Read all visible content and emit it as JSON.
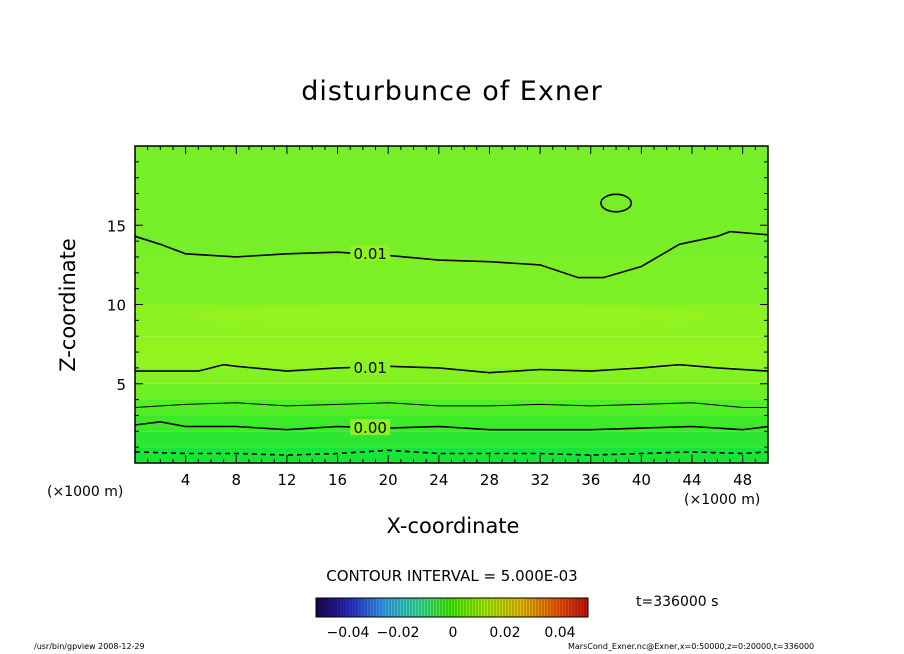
{
  "chart_data": {
    "type": "contour",
    "title": "disturbunce of Exner",
    "xlabel": "X-coordinate",
    "ylabel": "Z-coordinate",
    "x_unit": "(×1000 m)",
    "y_unit": "(×1000 m)",
    "xlim": [
      0,
      50
    ],
    "ylim": [
      0,
      20
    ],
    "x_ticks": [
      4,
      8,
      12,
      16,
      20,
      24,
      28,
      32,
      36,
      40,
      44,
      48
    ],
    "y_ticks": [
      5,
      10,
      15
    ],
    "contour_interval_text": "CONTOUR INTERVAL = 5.000E-03",
    "contour_labels": [
      {
        "text": "0.01",
        "x": 17,
        "z": 13.2
      },
      {
        "text": "0.01",
        "x": 17,
        "z": 6.0
      },
      {
        "text": "0.00",
        "x": 17,
        "z": 2.2
      }
    ],
    "contour_lines": [
      {
        "value": 0.01,
        "style": "solid",
        "points": [
          [
            0,
            14.3
          ],
          [
            2,
            13.8
          ],
          [
            4,
            13.2
          ],
          [
            8,
            13.0
          ],
          [
            12,
            13.2
          ],
          [
            16,
            13.3
          ],
          [
            20,
            13.1
          ],
          [
            24,
            12.8
          ],
          [
            28,
            12.7
          ],
          [
            32,
            12.5
          ],
          [
            35,
            11.7
          ],
          [
            37,
            11.7
          ],
          [
            40,
            12.4
          ],
          [
            43,
            13.8
          ],
          [
            46,
            14.3
          ],
          [
            47,
            14.6
          ],
          [
            50,
            14.4
          ]
        ]
      },
      {
        "value": 0.01,
        "style": "solid",
        "points": [
          [
            0,
            5.8
          ],
          [
            5,
            5.8
          ],
          [
            7,
            6.2
          ],
          [
            8,
            6.1
          ],
          [
            12,
            5.8
          ],
          [
            16,
            6.0
          ],
          [
            20,
            6.1
          ],
          [
            24,
            6.0
          ],
          [
            28,
            5.7
          ],
          [
            32,
            5.9
          ],
          [
            36,
            5.8
          ],
          [
            40,
            6.0
          ],
          [
            43,
            6.2
          ],
          [
            46,
            6.0
          ],
          [
            50,
            5.8
          ]
        ]
      },
      {
        "value": 0.005,
        "style": "thin",
        "points": [
          [
            0,
            3.5
          ],
          [
            4,
            3.7
          ],
          [
            8,
            3.8
          ],
          [
            12,
            3.6
          ],
          [
            16,
            3.7
          ],
          [
            20,
            3.8
          ],
          [
            24,
            3.6
          ],
          [
            28,
            3.6
          ],
          [
            32,
            3.7
          ],
          [
            36,
            3.6
          ],
          [
            40,
            3.7
          ],
          [
            44,
            3.8
          ],
          [
            48,
            3.5
          ],
          [
            50,
            3.5
          ]
        ]
      },
      {
        "value": 0.0,
        "style": "solid",
        "points": [
          [
            0,
            2.4
          ],
          [
            2,
            2.6
          ],
          [
            4,
            2.3
          ],
          [
            8,
            2.3
          ],
          [
            12,
            2.1
          ],
          [
            16,
            2.3
          ],
          [
            20,
            2.2
          ],
          [
            24,
            2.3
          ],
          [
            28,
            2.1
          ],
          [
            32,
            2.1
          ],
          [
            36,
            2.1
          ],
          [
            40,
            2.2
          ],
          [
            44,
            2.3
          ],
          [
            48,
            2.1
          ],
          [
            50,
            2.3
          ]
        ]
      },
      {
        "value": -0.005,
        "style": "dashed",
        "points": [
          [
            0,
            0.7
          ],
          [
            4,
            0.6
          ],
          [
            8,
            0.6
          ],
          [
            12,
            0.5
          ],
          [
            16,
            0.6
          ],
          [
            20,
            0.8
          ],
          [
            24,
            0.6
          ],
          [
            28,
            0.6
          ],
          [
            32,
            0.6
          ],
          [
            36,
            0.5
          ],
          [
            40,
            0.6
          ],
          [
            44,
            0.7
          ],
          [
            48,
            0.6
          ],
          [
            50,
            0.7
          ]
        ]
      }
    ],
    "closed_contours": [
      {
        "value": 0.01,
        "center": [
          38,
          16.4
        ],
        "radius_x": 1.2,
        "radius_z": 0.55
      }
    ],
    "colorbar": {
      "ticks": [
        "−0.04",
        "−0.02",
        "0",
        "0.02",
        "0.04"
      ],
      "range": [
        -0.05,
        0.05
      ],
      "stops": [
        "#20004a",
        "#2a2cc8",
        "#3aa0f0",
        "#39e0a0",
        "#46f000",
        "#a8f000",
        "#e8c000",
        "#f06000",
        "#c81010"
      ]
    },
    "fill_bands": [
      {
        "z": [
          0,
          1.0
        ],
        "color": "#18e43a"
      },
      {
        "z": [
          1.0,
          2.0
        ],
        "color": "#2ce632"
      },
      {
        "z": [
          2.0,
          3.0
        ],
        "color": "#3dea2a"
      },
      {
        "z": [
          3.0,
          4.0
        ],
        "color": "#52ee26"
      },
      {
        "z": [
          4.0,
          5.0
        ],
        "color": "#6cf024"
      },
      {
        "z": [
          5.0,
          6.0
        ],
        "color": "#84f222"
      },
      {
        "z": [
          6.0,
          8.0
        ],
        "color": "#92f41e"
      },
      {
        "z": [
          8.0,
          10.0
        ],
        "color": "#8cf222"
      },
      {
        "z": [
          10.0,
          13.0
        ],
        "color": "#7cf026"
      },
      {
        "z": [
          13.0,
          20.0
        ],
        "color": "#76ee28"
      }
    ]
  },
  "time_text": "t=336000 s",
  "footer_left": "/usr/bin/gpview  2008-12-29",
  "footer_right": "MarsCond_Exner.nc@Exner,x=0:50000,z=0:20000,t=336000"
}
